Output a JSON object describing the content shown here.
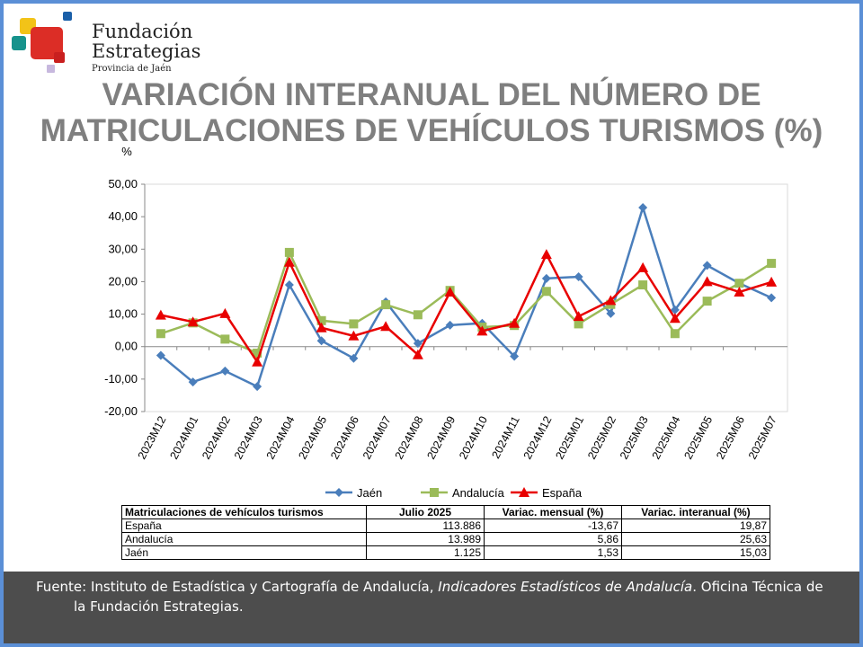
{
  "logo": {
    "line1": "Fundación",
    "line2": "Estrategias",
    "line3": "Provincia de Jaén"
  },
  "title": {
    "line1": "VARIACIÓN INTERANUAL DEL NÚMERO DE",
    "line2": "MATRICULACIONES DE VEHÍCULOS TURISMOS (%)"
  },
  "chart_data": {
    "type": "line",
    "ylabel": "%",
    "ylim": [
      -20,
      50
    ],
    "yticks": [
      "-20,00",
      "-10,00",
      "0,00",
      "10,00",
      "20,00",
      "30,00",
      "40,00",
      "50,00"
    ],
    "categories": [
      "2023M12",
      "2024M01",
      "2024M02",
      "2024M03",
      "2024M04",
      "2024M05",
      "2024M06",
      "2024M07",
      "2024M08",
      "2024M09",
      "2024M10",
      "2024M11",
      "2024M12",
      "2025M01",
      "2025M02",
      "2025M03",
      "2025M04",
      "2025M05",
      "2025M06",
      "2025M07"
    ],
    "legend": "bottom",
    "series": [
      {
        "name": "Jaén",
        "color": "#4a7ebb",
        "marker": "diamond",
        "values": [
          -2.7,
          -10.9,
          -7.5,
          -12.3,
          19,
          1.8,
          -3.6,
          13.8,
          1,
          6.6,
          7.2,
          -3,
          21,
          21.5,
          10.2,
          42.8,
          11.3,
          25,
          19.5,
          15.03
        ]
      },
      {
        "name": "Andalucía",
        "color": "#9bbb59",
        "marker": "square",
        "values": [
          4,
          7.3,
          2.3,
          -2,
          29,
          8,
          7,
          12.9,
          9.8,
          17.3,
          6,
          6.5,
          17,
          7,
          13,
          19,
          4,
          14,
          19.5,
          25.63
        ]
      },
      {
        "name": "España",
        "color": "#e80000",
        "marker": "triangle",
        "values": [
          9.7,
          7.6,
          10.2,
          -4.7,
          26,
          5.8,
          3.3,
          6.2,
          -2.5,
          16.8,
          4.8,
          7.2,
          28.4,
          9.3,
          14.2,
          24.3,
          8.7,
          20,
          16.8,
          19.87
        ]
      }
    ]
  },
  "table": {
    "headers": [
      "Matriculaciones de vehículos turismos",
      "Julio 2025",
      "Variac. mensual (%)",
      "Variac. interanual (%)"
    ],
    "rows": [
      [
        "España",
        "113.886",
        "-13,67",
        "19,87"
      ],
      [
        "Andalucía",
        "13.989",
        "5,86",
        "25,63"
      ],
      [
        "Jaén",
        "1.125",
        "1,53",
        "15,03"
      ]
    ]
  },
  "footer": {
    "prefix": "Fuente: Instituto de Estadística y Cartografía de Andalucía, ",
    "italic": "Indicadores Estadísticos de Andalucía",
    "suffix": ". Oficina Técnica de",
    "line2": "la Fundación Estrategias."
  }
}
